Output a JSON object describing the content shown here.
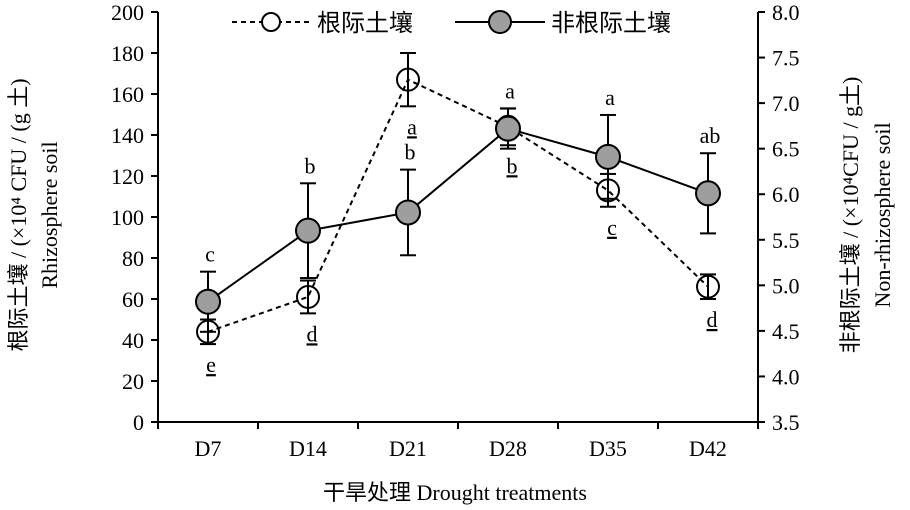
{
  "chart_data": {
    "type": "line",
    "categories": [
      "D7",
      "D14",
      "D21",
      "D28",
      "D35",
      "D42"
    ],
    "xlabel": "干旱处理 Drought treatments",
    "ylabel_left_cn": "根际土壤 / (×10⁴ CFU / (g 土)",
    "ylabel_left_en": "Rhizosphere soil",
    "ylabel_right_cn": "非根际土壤 / (×10⁴CFU / g土)",
    "ylabel_right_en": "Non-rhizosphere soil",
    "ylim_left": [
      0,
      200
    ],
    "yticks_left": [
      "0",
      "20",
      "40",
      "60",
      "80",
      "100",
      "120",
      "140",
      "160",
      "180",
      "200"
    ],
    "ylim_right": [
      3.5,
      8.0
    ],
    "yticks_right": [
      "3.5",
      "4.0",
      "4.5",
      "5.0",
      "5.5",
      "6.0",
      "6.5",
      "7.0",
      "7.5",
      "8.0"
    ],
    "legend_position": "top",
    "series": [
      {
        "name": "根际土壤",
        "axis": "left",
        "style": "dashed",
        "marker": "open-circle",
        "values": [
          44,
          61,
          167,
          144,
          113,
          66
        ],
        "errors": [
          6,
          8,
          13,
          9,
          8,
          6
        ],
        "letters": [
          "e",
          "d",
          "a",
          "b",
          "c",
          "d"
        ]
      },
      {
        "name": "非根际土壤",
        "axis": "right",
        "style": "solid",
        "marker": "filled-circle",
        "values": [
          4.82,
          5.6,
          5.8,
          6.72,
          6.41,
          6.01
        ],
        "errors": [
          0.33,
          0.52,
          0.47,
          0.22,
          0.46,
          0.44
        ],
        "letters": [
          "c",
          "b",
          "b",
          "a",
          "a",
          "ab"
        ]
      }
    ],
    "colors": {
      "line": "#000000",
      "fill_marker": "#9e9e9e",
      "open_marker": "#ffffff"
    }
  }
}
